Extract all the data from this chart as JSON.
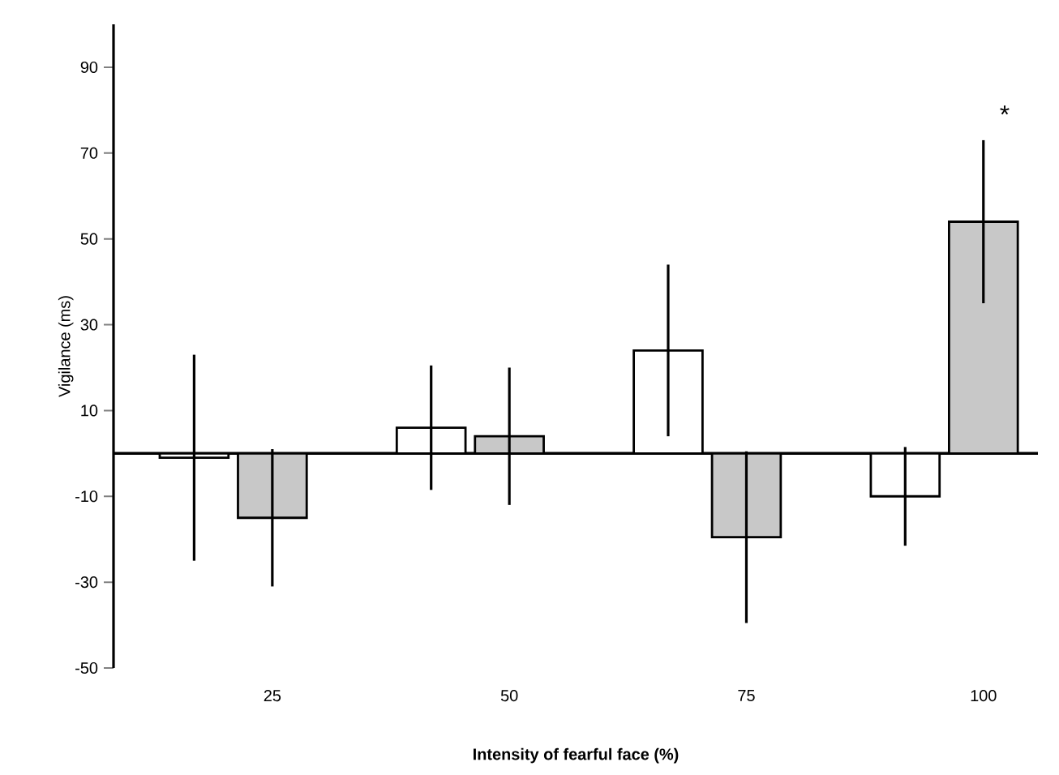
{
  "chart_data": {
    "type": "bar",
    "xlabel": "Intensity of fearful face (%)",
    "ylabel": "Vigilance (ms)",
    "categories": [
      "25",
      "50",
      "75",
      "100"
    ],
    "series": [
      {
        "color": "#ffffff",
        "values": [
          -1,
          6,
          24,
          -10
        ],
        "errors": [
          24,
          14.5,
          20,
          11.5
        ]
      },
      {
        "color": "#c8c8c8",
        "values": [
          -15,
          4,
          -19.5,
          54
        ],
        "errors": [
          16,
          16,
          20,
          19
        ]
      }
    ],
    "ylim": [
      -50,
      100
    ],
    "yticks": [
      -50,
      -30,
      -10,
      10,
      30,
      50,
      70,
      90
    ],
    "grid": false,
    "ref_lines": [
      {
        "axis": "y",
        "value": 0
      }
    ],
    "annotations": [
      "*"
    ]
  }
}
